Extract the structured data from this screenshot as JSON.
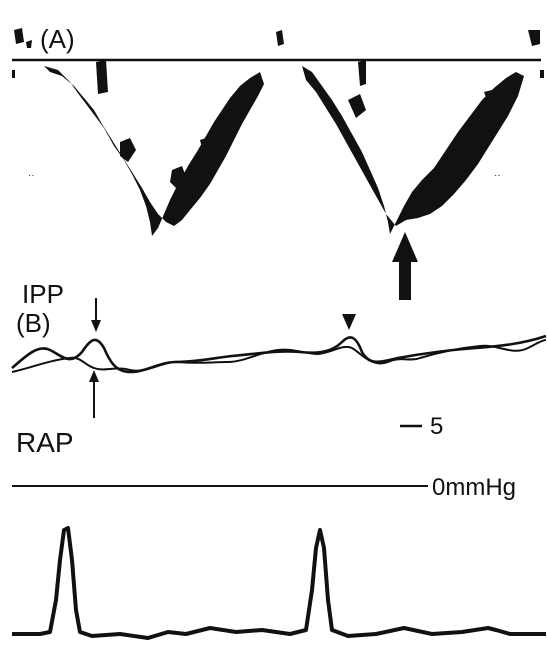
{
  "figure": {
    "panel_a_label": "(A)",
    "panel_b_label": "(B)",
    "ipp_label": "IPP",
    "rap_label": "RAP",
    "scale_label": "5",
    "zero_label": "0mmHg"
  },
  "colors": {
    "ink": "#111111",
    "background": "#ffffff"
  }
}
